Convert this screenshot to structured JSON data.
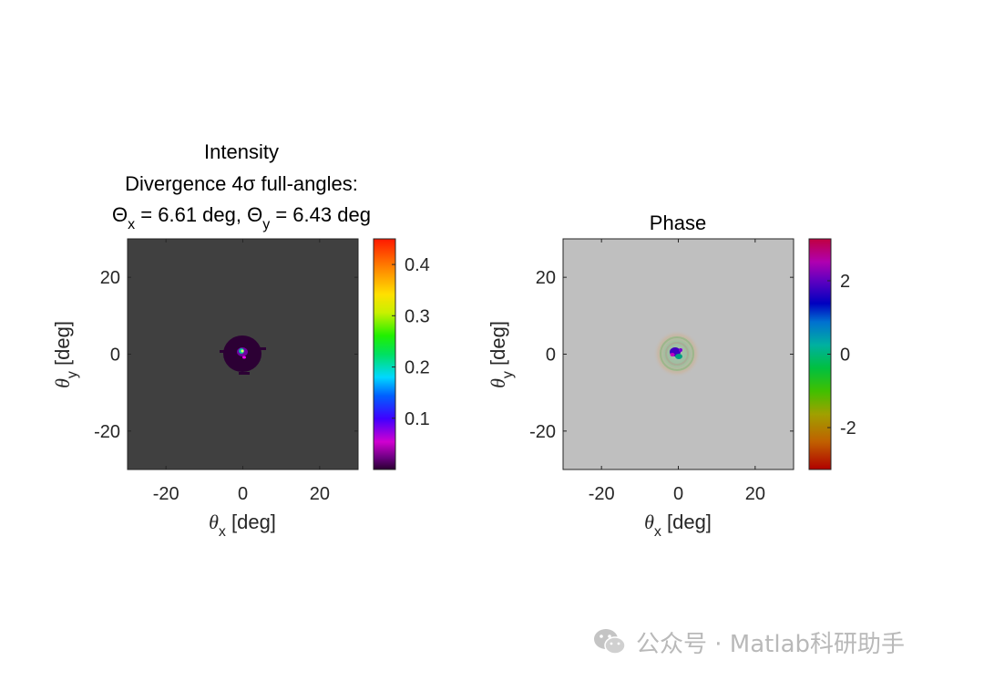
{
  "chart_data": [
    {
      "type": "heatmap",
      "title_lines": [
        "Intensity",
        "Divergence 4σ full-angles:"
      ],
      "title_line3": {
        "theta": "Θ",
        "sub_x": "x",
        "mid": " = 6.61 deg, ",
        "sub_y": "y",
        "end": " = 6.43 deg"
      },
      "xlabel": {
        "sym": "θ",
        "sub": "x",
        "unit": " [deg]"
      },
      "ylabel": {
        "sym": "θ",
        "sub": "y",
        "unit": " [deg]"
      },
      "xlim": [
        -30,
        30
      ],
      "ylim": [
        -30,
        30
      ],
      "xticks": [
        -20,
        0,
        20
      ],
      "yticks": [
        20,
        0,
        -20
      ],
      "background_color": "#404040",
      "colormap": "rainbow (purple → red)",
      "colorbar": {
        "range": [
          0,
          0.45
        ],
        "ticks": [
          "0.1",
          "0.2",
          "0.3",
          "0.4"
        ],
        "tick_values": [
          0.1,
          0.2,
          0.3,
          0.4
        ]
      }
    },
    {
      "type": "heatmap",
      "title": "Phase",
      "xlabel": {
        "sym": "θ",
        "sub": "x",
        "unit": " [deg]"
      },
      "ylabel": {
        "sym": "θ",
        "sub": "y",
        "unit": " [deg]"
      },
      "xlim": [
        -30,
        30
      ],
      "ylim": [
        -30,
        30
      ],
      "xticks": [
        -20,
        0,
        20
      ],
      "yticks": [
        20,
        0,
        -20
      ],
      "background_color": "#bfbfbf",
      "colormap": "hsv (-π → π)",
      "colorbar": {
        "range": [
          -3.1416,
          3.1416
        ],
        "ticks": [
          "-2",
          "0",
          "2"
        ],
        "tick_values": [
          -2,
          0,
          2
        ]
      }
    }
  ],
  "watermark": {
    "text": "公众号 · Matlab科研助手"
  }
}
